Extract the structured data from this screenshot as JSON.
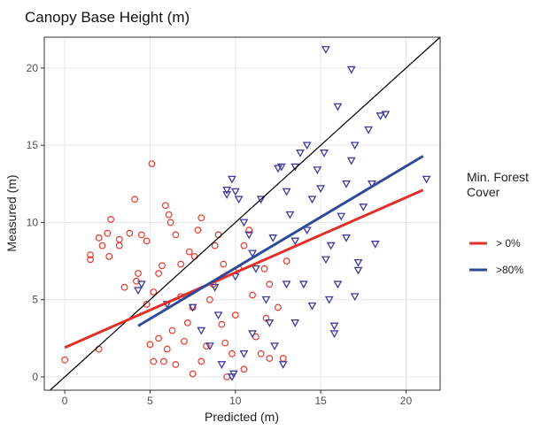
{
  "chart_data": {
    "type": "scatter",
    "title": "Canopy Base Height (m)",
    "x_label": "Predicted (m)",
    "y_label": "Measured (m)",
    "xlim": [
      -1.2,
      22
    ],
    "ylim": [
      -0.86,
      22
    ],
    "xticks": [
      0,
      5,
      10,
      15,
      20
    ],
    "yticks": [
      0,
      5,
      10,
      15,
      20
    ],
    "grid": true,
    "identity_line": true,
    "legend_title": "Min. Forest Cover",
    "legend_position": "right",
    "series": [
      {
        "name": "> 0%",
        "color": "#e8382b",
        "marker": "circle",
        "x": [
          0,
          1.5,
          1.5,
          2,
          2.2,
          2.5,
          2.7,
          2.6,
          3.2,
          3.2,
          3.8,
          4.1,
          4.5,
          4.8,
          5.1,
          5.5,
          5.7,
          5.9,
          6.1,
          6.2,
          6.5,
          6.8,
          5.2,
          4.8,
          5.5,
          5,
          5.2,
          5.8,
          6,
          6.3,
          6.5,
          7,
          7.2,
          7.5,
          7.6,
          7.8,
          8,
          8.3,
          8.5,
          8.7,
          8.8,
          9,
          9.2,
          9.4,
          9.5,
          9.8,
          10,
          10.2,
          10.5,
          10.8,
          11,
          11.2,
          11.5,
          11.8,
          12,
          12.5,
          13,
          12,
          10.5,
          7.5,
          8,
          2,
          3.5,
          4.2,
          4.3,
          6.8,
          7.3,
          9.3,
          11.7,
          12.8
        ],
        "values": [
          1.1,
          7.6,
          7.9,
          9,
          8.5,
          9.3,
          10.2,
          7.8,
          8.9,
          8.5,
          9.3,
          11.5,
          9.2,
          8.8,
          13.8,
          6.7,
          7.2,
          11.1,
          10.5,
          10,
          9.2,
          5.2,
          5.5,
          4.7,
          2.5,
          2.1,
          1,
          1,
          1.8,
          3,
          0.8,
          2.3,
          3.5,
          4.5,
          7.8,
          9.5,
          1,
          2,
          5,
          6,
          8.5,
          9.2,
          3.4,
          2.2,
          0,
          1.5,
          4,
          7,
          8.5,
          9.5,
          5.3,
          2.6,
          1.5,
          3.8,
          6,
          4.5,
          7.5,
          1.2,
          0.5,
          0.2,
          10.3,
          1.8,
          5.8,
          6.2,
          6.7,
          7.3,
          8.1,
          7.3,
          7,
          1.2
        ],
        "fit": {
          "x": [
            0,
            21
          ],
          "values": [
            1.9,
            12.1
          ],
          "color": "#e0302a"
        }
      },
      {
        "name": ">80%",
        "color": "#3d3b9c",
        "marker": "triangle-down",
        "x": [
          4.3,
          4.5,
          6,
          7.5,
          8,
          8.5,
          9,
          9.2,
          9.5,
          9.5,
          9.8,
          10,
          10.2,
          10.5,
          10.8,
          11,
          11.2,
          11.5,
          11.8,
          12,
          12.3,
          12.5,
          12.7,
          13,
          13.2,
          13.5,
          13.8,
          14,
          14.2,
          14.5,
          14.8,
          15,
          15.3,
          15.3,
          15.5,
          15.6,
          15.8,
          15.8,
          16,
          16.2,
          16.5,
          16.8,
          16.8,
          17,
          17.2,
          17.5,
          17.8,
          18,
          18.2,
          18.5,
          18.8,
          17,
          16.5,
          15.2,
          14.2,
          13.5,
          13,
          10.5,
          11,
          9.8,
          9.9,
          8.8,
          10,
          12.2,
          21.2,
          17.2,
          16,
          14.5,
          13.5,
          12.8
        ],
        "values": [
          5.6,
          6,
          4.7,
          4.5,
          3,
          2,
          4,
          0.8,
          12.1,
          11.8,
          12.8,
          12,
          11.5,
          10,
          9.2,
          8,
          7,
          11.5,
          5,
          3.5,
          2,
          13.5,
          13.6,
          12,
          10.5,
          8.8,
          14.5,
          6,
          9.5,
          11.5,
          13.4,
          12.2,
          21.2,
          7.6,
          5,
          8.5,
          2.8,
          3.3,
          17.5,
          10.4,
          12.5,
          19.9,
          14,
          15,
          6.9,
          11,
          16,
          12.5,
          8.6,
          16.9,
          17,
          5.2,
          9,
          14.5,
          15,
          13.6,
          6,
          1.5,
          2.8,
          0,
          0.2,
          5.8,
          6.5,
          9,
          12.8,
          7.4,
          6,
          4.6,
          3.5,
          0.8
        ],
        "fit": {
          "x": [
            4.3,
            21
          ],
          "values": [
            3.3,
            14.3
          ],
          "color": "#2f4a9a"
        }
      }
    ]
  }
}
